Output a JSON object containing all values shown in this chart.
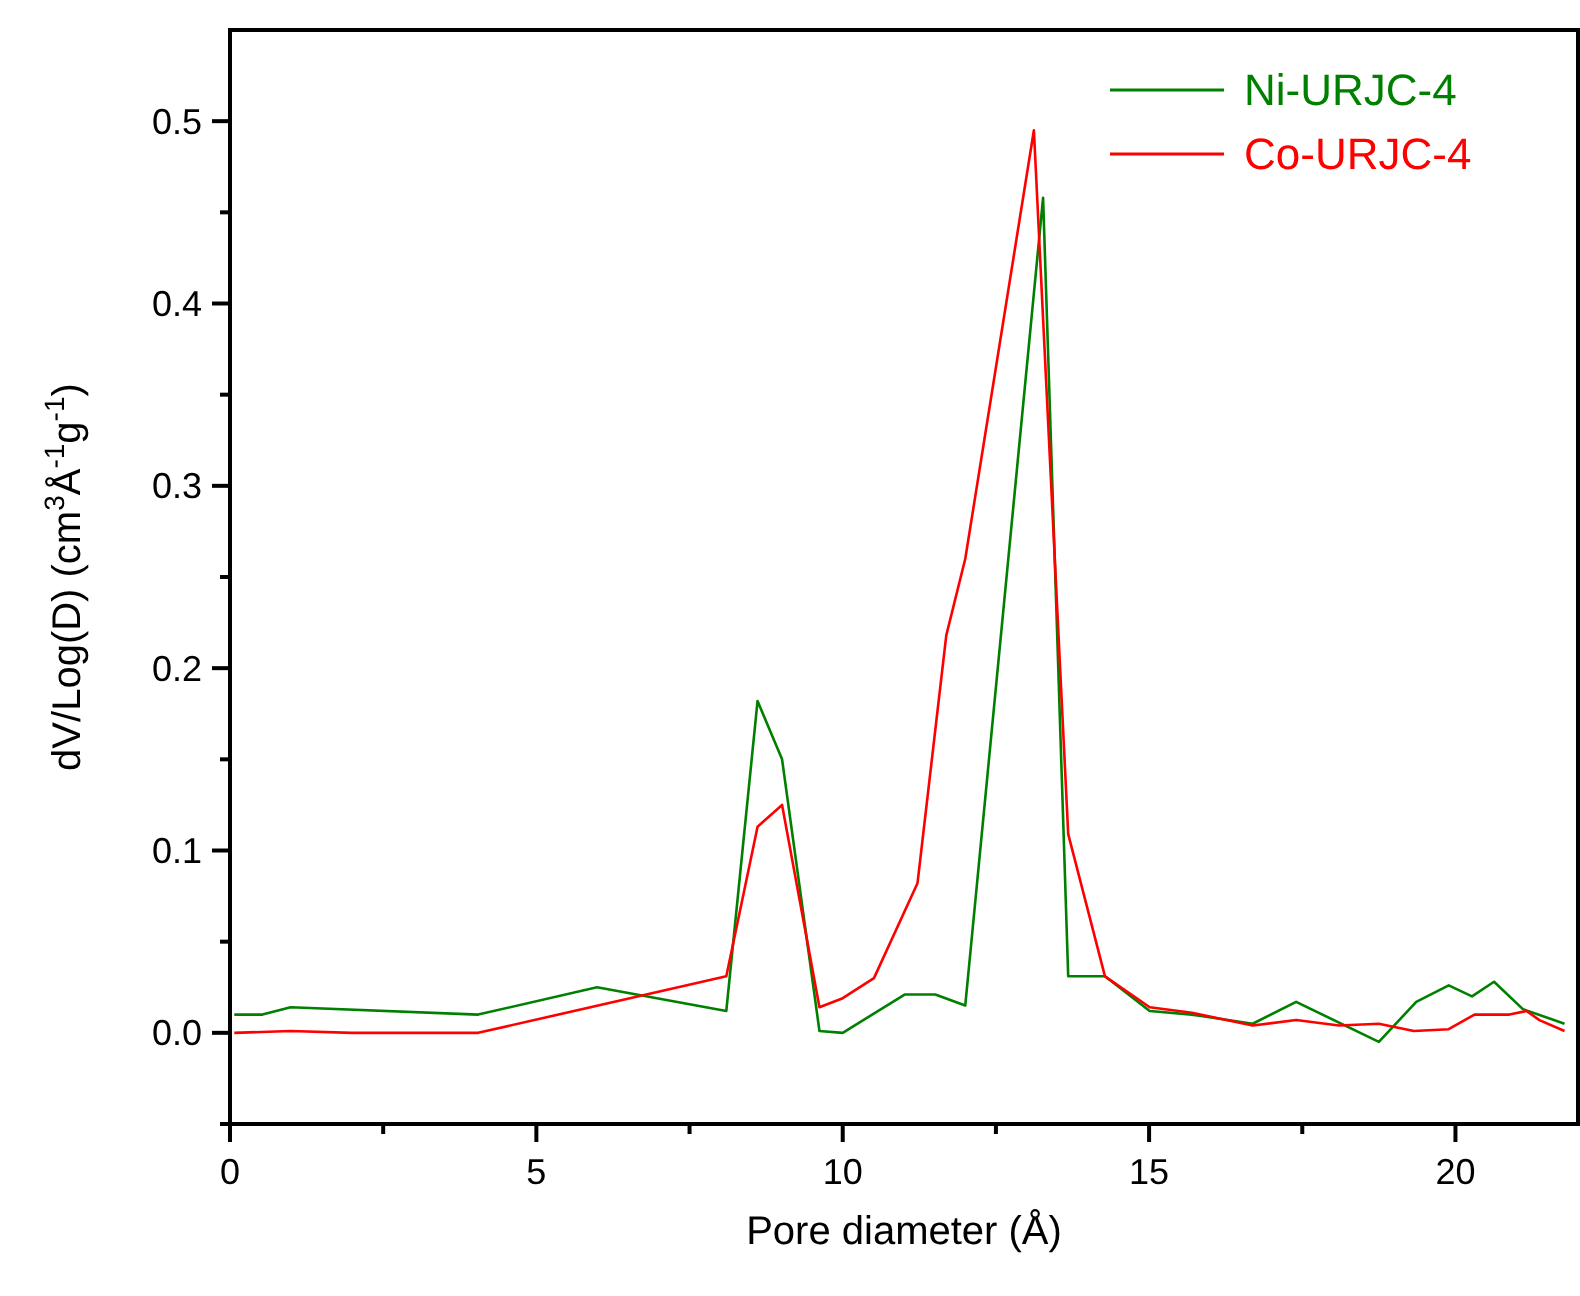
{
  "chart_data": {
    "type": "line",
    "xlabel": "Pore diameter (Å)",
    "ylabel": "dV/Log(D) (cm$^{3}$Å$^{-1}$g$^{-1}$)",
    "xlim": [
      0,
      22
    ],
    "ylim": [
      -0.05,
      0.55
    ],
    "xticks": [
      0,
      {
        "value": 2.5,
        "label": null
      },
      5,
      {
        "value": 7.5,
        "label": null
      },
      10,
      {
        "value": 12.5,
        "label": null
      },
      15,
      {
        "value": 17.5,
        "label": null
      },
      20
    ],
    "yticks": [
      {
        "value": -0.05,
        "label": null
      },
      "0.0",
      {
        "value": 0.05,
        "label": null
      },
      0.1,
      {
        "value": 0.15,
        "label": null
      },
      0.2,
      {
        "value": 0.25,
        "label": null
      },
      0.3,
      {
        "value": 0.35,
        "label": null
      },
      0.4,
      {
        "value": 0.45,
        "label": null
      },
      0.5
    ],
    "legend": "top right",
    "grid": false,
    "line_style": "solid",
    "series": [
      {
        "name": "Ni-URJC-4",
        "color": "#008000",
        "x": [
          0.07,
          0.53,
          0.99,
          4.05,
          5.99,
          8.1,
          8.61,
          9.01,
          9.62,
          10.0,
          11.01,
          11.51,
          12.0,
          13.27,
          13.68,
          14.28,
          15.01,
          15.7,
          16.69,
          17.4,
          18.75,
          19.36,
          19.89,
          20.27,
          20.63,
          21.1,
          21.78
        ],
        "values": [
          0.01,
          0.01,
          0.014,
          0.01,
          0.025,
          0.012,
          0.182,
          0.15,
          0.001,
          0.0,
          0.021,
          0.021,
          0.015,
          0.458,
          0.031,
          0.031,
          0.012,
          0.01,
          0.005,
          0.017,
          -0.005,
          0.017,
          0.026,
          0.02,
          0.028,
          0.013,
          0.005
        ]
      },
      {
        "name": "Co-URJC-4",
        "color": "#ff0000",
        "x": [
          0.07,
          0.99,
          1.99,
          4.05,
          8.1,
          8.61,
          9.01,
          9.62,
          10.0,
          10.51,
          11.22,
          11.69,
          12.0,
          13.12,
          13.68,
          14.28,
          15.01,
          15.7,
          16.69,
          17.4,
          18.1,
          18.75,
          19.32,
          19.89,
          20.31,
          20.88,
          21.16,
          21.37,
          21.78
        ],
        "values": [
          0.0,
          0.001,
          0.0,
          0.0,
          0.031,
          0.113,
          0.125,
          0.014,
          0.019,
          0.03,
          0.082,
          0.218,
          0.26,
          0.495,
          0.109,
          0.031,
          0.014,
          0.011,
          0.004,
          0.007,
          0.004,
          0.005,
          0.001,
          0.002,
          0.01,
          0.01,
          0.012,
          0.007,
          0.001
        ]
      }
    ]
  }
}
